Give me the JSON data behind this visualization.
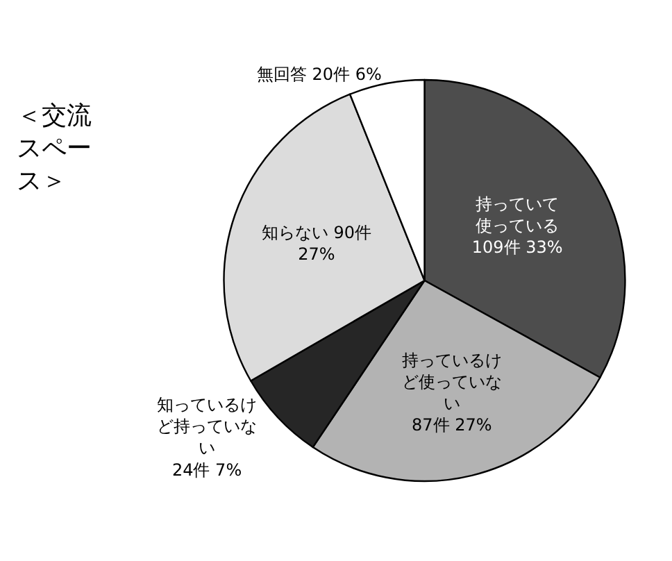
{
  "chart_data": {
    "type": "pie",
    "title": "＜交流スペース＞",
    "categories": [
      "持っていて使っている",
      "持っているけど使っていない",
      "知っているけど持っていない",
      "知らない",
      "無回答"
    ],
    "values": [
      109,
      87,
      24,
      90,
      20
    ],
    "value_labels": [
      "109件 33%",
      "87件 27%",
      "24件 7%",
      "90件 27%",
      "20件 6%"
    ],
    "colors": [
      "#4d4d4d",
      "#b3b3b3",
      "#262626",
      "#dcdcdc",
      "#ffffff"
    ],
    "legend": false
  }
}
